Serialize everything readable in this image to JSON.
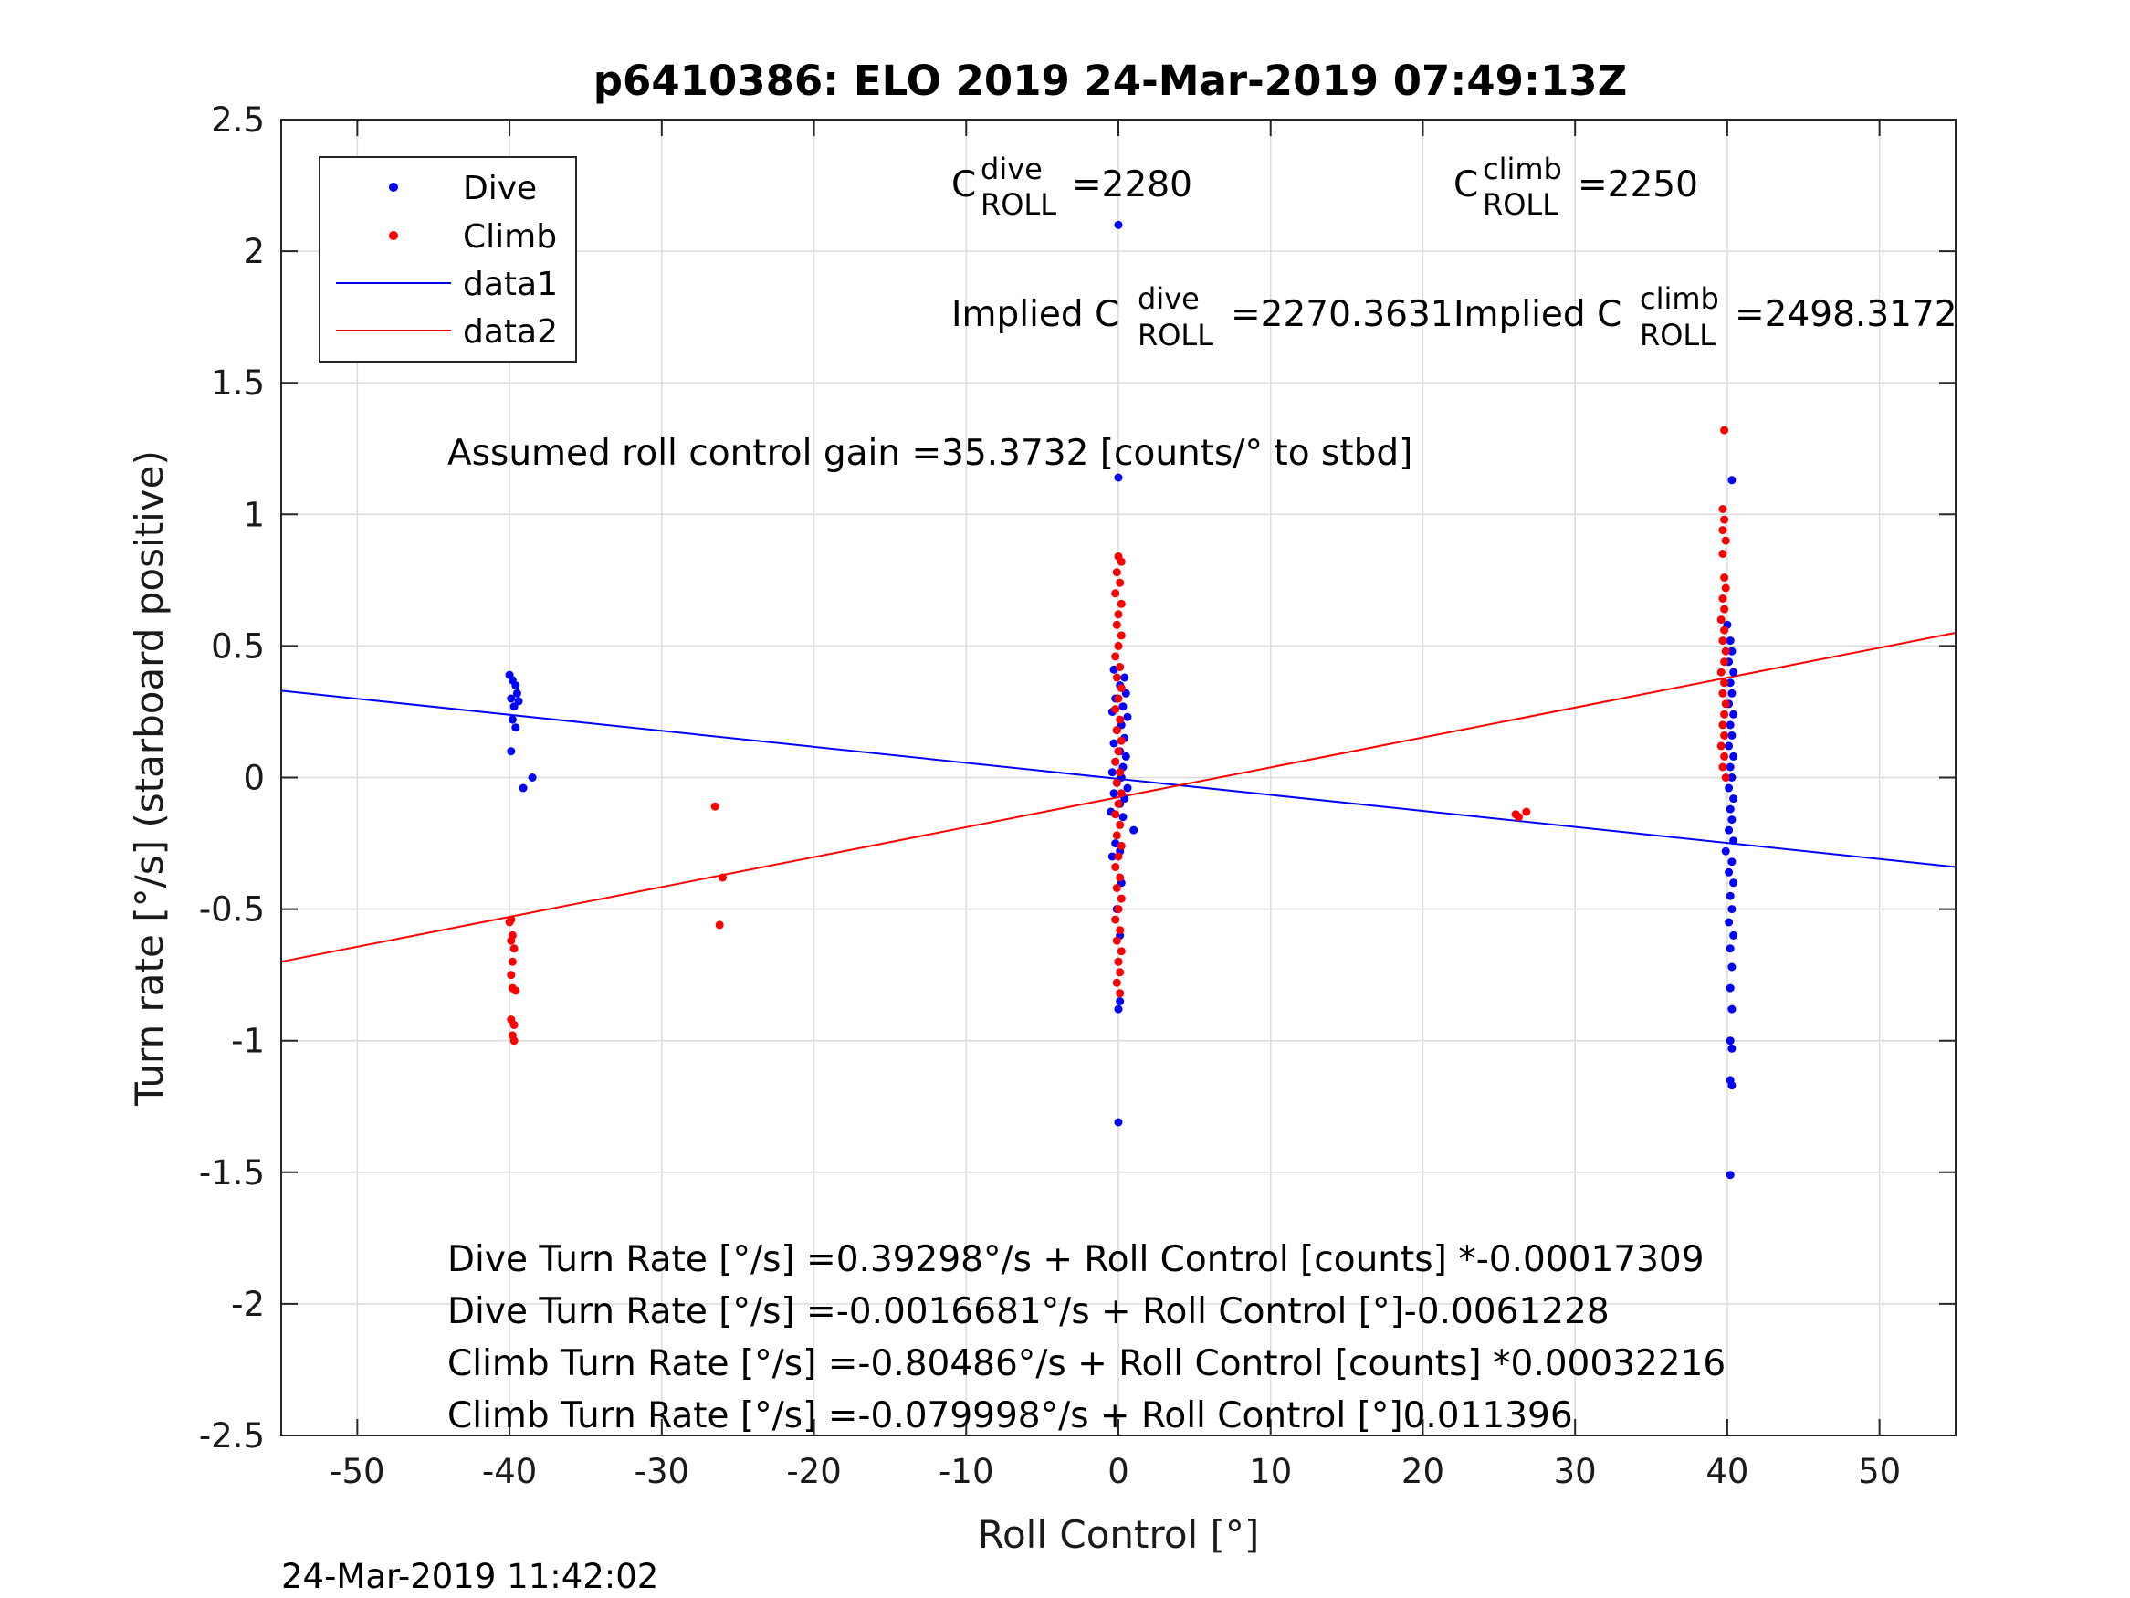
{
  "chart_data": {
    "type": "scatter",
    "title": "p6410386: ELO 2019 24-Mar-2019 07:49:13Z",
    "xlabel": "Roll Control [°]",
    "ylabel": "Turn rate [°/s] (starboard positive)",
    "xlim": [
      -55,
      55
    ],
    "ylim": [
      -2.5,
      2.5
    ],
    "grid": true,
    "xticks": [
      -50,
      -40,
      -30,
      -20,
      -10,
      0,
      10,
      20,
      30,
      40,
      50
    ],
    "yticks": [
      2.5,
      2,
      1.5,
      1,
      0.5,
      0,
      -0.5,
      -1,
      -1.5,
      -2,
      -2.5
    ],
    "xtick_labels": [
      "-50",
      "-40",
      "-30",
      "-20",
      "-10",
      "0",
      "10",
      "20",
      "30",
      "40",
      "50"
    ],
    "ytick_labels": [
      "2.5",
      "2",
      "1.5",
      "1",
      "0.5",
      "0",
      "-0.5",
      "-1",
      "-1.5",
      "-2",
      "-2.5"
    ],
    "legend_position": "top-left",
    "legend": [
      "Dive",
      "Climb",
      "data1",
      "data2"
    ],
    "series": [
      {
        "name": "Dive",
        "kind": "points",
        "color": "#0000ff",
        "points": [
          [
            -40,
            0.39
          ],
          [
            -39.8,
            0.37
          ],
          [
            -39.6,
            0.35
          ],
          [
            -39.5,
            0.32
          ],
          [
            -39.9,
            0.3
          ],
          [
            -39.4,
            0.29
          ],
          [
            -39.7,
            0.27
          ],
          [
            -39.8,
            0.22
          ],
          [
            -39.6,
            0.19
          ],
          [
            -39.9,
            0.1
          ],
          [
            -39.1,
            -0.04
          ],
          [
            -38.5,
            0
          ],
          [
            0,
            2.1
          ],
          [
            0,
            1.14
          ],
          [
            -0.3,
            0.41
          ],
          [
            0.4,
            0.38
          ],
          [
            0.1,
            0.35
          ],
          [
            0.5,
            0.32
          ],
          [
            -0.2,
            0.3
          ],
          [
            0.3,
            0.27
          ],
          [
            -0.4,
            0.25
          ],
          [
            0.6,
            0.23
          ],
          [
            0.2,
            0.2
          ],
          [
            -0.1,
            0.18
          ],
          [
            0.4,
            0.15
          ],
          [
            -0.3,
            0.13
          ],
          [
            0.1,
            0.1
          ],
          [
            0.5,
            0.08
          ],
          [
            -0.2,
            0.06
          ],
          [
            0.3,
            0.04
          ],
          [
            -0.4,
            0.02
          ],
          [
            0.2,
            0
          ],
          [
            -0.1,
            -0.02
          ],
          [
            0.6,
            -0.04
          ],
          [
            -0.3,
            -0.06
          ],
          [
            0.4,
            -0.08
          ],
          [
            0.1,
            -0.1
          ],
          [
            -0.5,
            -0.13
          ],
          [
            0.3,
            -0.15
          ],
          [
            1,
            -0.2
          ],
          [
            -0.2,
            -0.25
          ],
          [
            0.1,
            -0.28
          ],
          [
            -0.4,
            -0.3
          ],
          [
            0.2,
            -0.4
          ],
          [
            -0.1,
            -0.5
          ],
          [
            0.1,
            -0.6
          ],
          [
            0,
            -0.7
          ],
          [
            0.1,
            -0.85
          ],
          [
            0,
            -0.88
          ],
          [
            0,
            -1.31
          ],
          [
            40.3,
            1.13
          ],
          [
            40,
            0.58
          ],
          [
            40.2,
            0.52
          ],
          [
            40.3,
            0.48
          ],
          [
            40.1,
            0.44
          ],
          [
            40.4,
            0.4
          ],
          [
            40.2,
            0.36
          ],
          [
            40.3,
            0.32
          ],
          [
            40.1,
            0.28
          ],
          [
            40.4,
            0.24
          ],
          [
            40.2,
            0.2
          ],
          [
            40.3,
            0.16
          ],
          [
            40.1,
            0.12
          ],
          [
            40.4,
            0.08
          ],
          [
            40.2,
            0.04
          ],
          [
            40.3,
            0
          ],
          [
            40.1,
            -0.04
          ],
          [
            40.4,
            -0.08
          ],
          [
            40.2,
            -0.12
          ],
          [
            40.3,
            -0.16
          ],
          [
            40.1,
            -0.2
          ],
          [
            40.4,
            -0.24
          ],
          [
            39.9,
            -0.28
          ],
          [
            40.3,
            -0.32
          ],
          [
            40.1,
            -0.36
          ],
          [
            40.4,
            -0.4
          ],
          [
            40.2,
            -0.45
          ],
          [
            40.3,
            -0.5
          ],
          [
            40.1,
            -0.55
          ],
          [
            40.4,
            -0.6
          ],
          [
            40.2,
            -0.65
          ],
          [
            40.3,
            -0.72
          ],
          [
            40.2,
            -0.8
          ],
          [
            40.3,
            -0.88
          ],
          [
            40.2,
            -1
          ],
          [
            40.3,
            -1.03
          ],
          [
            40.2,
            -1.15
          ],
          [
            40.3,
            -1.17
          ],
          [
            40.2,
            -1.51
          ]
        ]
      },
      {
        "name": "Climb",
        "kind": "points",
        "color": "#ff0000",
        "points": [
          [
            -39.9,
            -0.54
          ],
          [
            -40,
            -0.55
          ],
          [
            -39.8,
            -0.6
          ],
          [
            -39.9,
            -0.62
          ],
          [
            -39.7,
            -0.65
          ],
          [
            -39.8,
            -0.7
          ],
          [
            -39.9,
            -0.75
          ],
          [
            -39.8,
            -0.8
          ],
          [
            -39.6,
            -0.81
          ],
          [
            -39.9,
            -0.92
          ],
          [
            -39.7,
            -0.94
          ],
          [
            -39.8,
            -0.98
          ],
          [
            -39.7,
            -1
          ],
          [
            -26.5,
            -0.11
          ],
          [
            -26,
            -0.38
          ],
          [
            -26.2,
            -0.56
          ],
          [
            0,
            0.84
          ],
          [
            0.2,
            0.82
          ],
          [
            -0.1,
            0.78
          ],
          [
            0.1,
            0.74
          ],
          [
            -0.2,
            0.7
          ],
          [
            0.2,
            0.66
          ],
          [
            0,
            0.62
          ],
          [
            -0.1,
            0.58
          ],
          [
            0.2,
            0.54
          ],
          [
            0,
            0.5
          ],
          [
            -0.2,
            0.46
          ],
          [
            0.1,
            0.42
          ],
          [
            -0.1,
            0.38
          ],
          [
            0.2,
            0.34
          ],
          [
            0,
            0.3
          ],
          [
            -0.2,
            0.26
          ],
          [
            0.1,
            0.22
          ],
          [
            -0.1,
            0.18
          ],
          [
            0.2,
            0.14
          ],
          [
            0,
            0.1
          ],
          [
            -0.2,
            0.06
          ],
          [
            0.1,
            0.02
          ],
          [
            -0.1,
            -0.02
          ],
          [
            0.2,
            -0.06
          ],
          [
            0,
            -0.1
          ],
          [
            -0.2,
            -0.14
          ],
          [
            0.1,
            -0.18
          ],
          [
            -0.1,
            -0.22
          ],
          [
            0.2,
            -0.26
          ],
          [
            0,
            -0.3
          ],
          [
            -0.2,
            -0.34
          ],
          [
            0.1,
            -0.38
          ],
          [
            -0.1,
            -0.42
          ],
          [
            0.2,
            -0.46
          ],
          [
            0,
            -0.5
          ],
          [
            -0.2,
            -0.54
          ],
          [
            0.1,
            -0.58
          ],
          [
            -0.1,
            -0.62
          ],
          [
            0.2,
            -0.66
          ],
          [
            0,
            -0.7
          ],
          [
            0.1,
            -0.74
          ],
          [
            -0.1,
            -0.78
          ],
          [
            0.1,
            -0.82
          ],
          [
            26.3,
            -0.15
          ],
          [
            26.8,
            -0.13
          ],
          [
            26.1,
            -0.14
          ],
          [
            39.8,
            1.32
          ],
          [
            39.7,
            1.02
          ],
          [
            39.8,
            0.98
          ],
          [
            39.7,
            0.94
          ],
          [
            39.9,
            0.9
          ],
          [
            39.7,
            0.85
          ],
          [
            39.8,
            0.76
          ],
          [
            39.9,
            0.72
          ],
          [
            39.7,
            0.68
          ],
          [
            39.8,
            0.64
          ],
          [
            39.6,
            0.6
          ],
          [
            39.8,
            0.56
          ],
          [
            39.7,
            0.52
          ],
          [
            39.9,
            0.48
          ],
          [
            39.8,
            0.44
          ],
          [
            39.6,
            0.4
          ],
          [
            39.8,
            0.36
          ],
          [
            39.7,
            0.32
          ],
          [
            39.9,
            0.28
          ],
          [
            39.8,
            0.24
          ],
          [
            39.7,
            0.2
          ],
          [
            39.8,
            0.16
          ],
          [
            39.6,
            0.12
          ],
          [
            39.8,
            0.08
          ],
          [
            39.7,
            0.04
          ],
          [
            39.9,
            0
          ]
        ]
      },
      {
        "name": "data1",
        "kind": "line",
        "color": "#0000ff",
        "points": [
          [
            -55,
            0.33
          ],
          [
            55,
            -0.34
          ]
        ]
      },
      {
        "name": "data2",
        "kind": "line",
        "color": "#ff0000",
        "points": [
          [
            -55,
            -0.7
          ],
          [
            55,
            0.55
          ]
        ]
      }
    ]
  },
  "annotations": {
    "c_dive": {
      "base": "C",
      "sup": "dive",
      "sub": "ROLL",
      "value": "=2280"
    },
    "c_climb": {
      "base": "C",
      "sup": "climb",
      "sub": "ROLL",
      "value": "=2250"
    },
    "implied_dive": {
      "prefix": "Implied C",
      "sup": "dive",
      "sub": "ROLL",
      "value": "=2270.3631"
    },
    "implied_climb": {
      "prefix": "Implied C",
      "sup": "climb",
      "sub": "ROLL",
      "value": "=2498.3172"
    },
    "gain": "Assumed roll control gain =35.3732 [counts/° to stbd]",
    "eq1": "Dive Turn Rate [°/s] =0.39298°/s + Roll Control [counts] *-0.00017309",
    "eq2": "Dive Turn Rate [°/s] =-0.0016681°/s + Roll Control [°]-0.0061228",
    "eq3": "Climb Turn Rate [°/s] =-0.80486°/s + Roll Control [counts] *0.00032216",
    "eq4": "Climb Turn Rate [°/s] =-0.079998°/s + Roll Control [°]0.011396"
  },
  "timestamp": "24-Mar-2019 11:42:02"
}
